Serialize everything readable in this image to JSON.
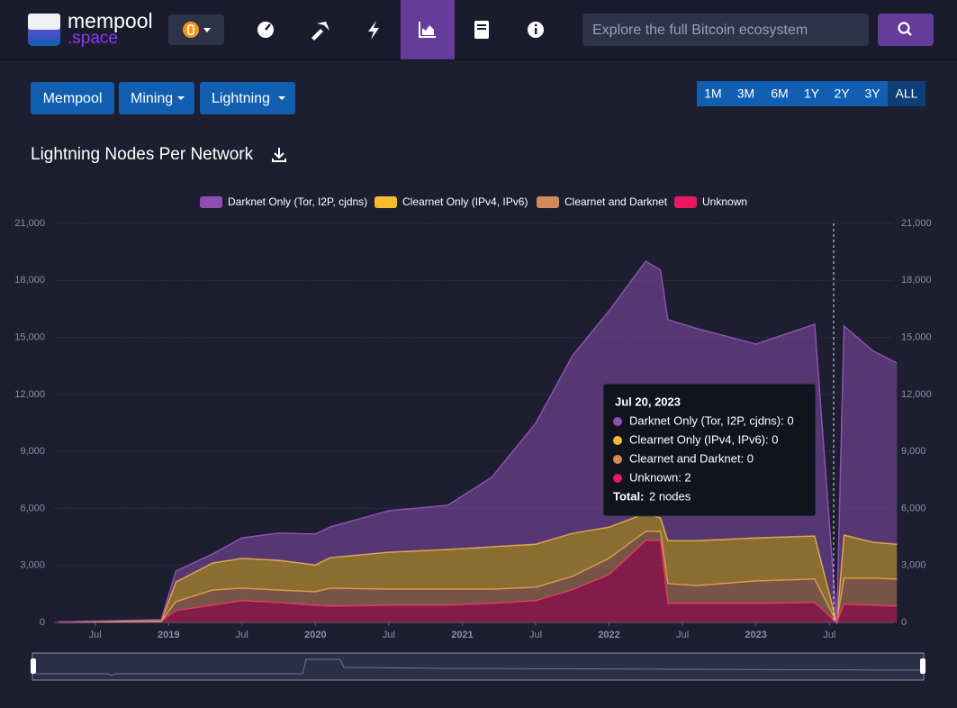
{
  "header": {
    "logo_top": "mempool",
    "logo_bottom": ".space",
    "search_placeholder": "Explore the full Bitcoin ecosystem"
  },
  "toolbar": {
    "buttons": [
      "Mempool",
      "Mining",
      "Lightning"
    ],
    "ranges": [
      "1M",
      "3M",
      "6M",
      "1Y",
      "2Y",
      "3Y",
      "ALL"
    ],
    "active_range": "ALL"
  },
  "chart_data": {
    "type": "stacked-area",
    "title": "Lightning Nodes Per Network",
    "x": [
      2018.25,
      2018.95,
      2019.05,
      2019.3,
      2019.5,
      2019.75,
      2020.0,
      2020.1,
      2020.5,
      2020.9,
      2021.2,
      2021.5,
      2021.75,
      2022.0,
      2022.25,
      2022.35,
      2022.4,
      2022.6,
      2023.0,
      2023.4,
      2023.55,
      2023.6,
      2023.8,
      2023.96
    ],
    "series": [
      {
        "name": "Darknet Only (Tor, I2P, cjdns)",
        "color": "#8e4fb3",
        "values": [
          10,
          70,
          570,
          470,
          1080,
          1430,
          1620,
          1610,
          2180,
          2320,
          3650,
          6360,
          9340,
          11380,
          13270,
          13030,
          11620,
          11150,
          10200,
          11140,
          0,
          11000,
          10050,
          9530
        ]
      },
      {
        "name": "Clearnet Only (IPv4, IPv6)",
        "color": "#f7bb31",
        "values": [
          5,
          20,
          1040,
          1430,
          1570,
          1570,
          1420,
          1610,
          1950,
          2090,
          2230,
          2270,
          2270,
          1650,
          950,
          710,
          2270,
          2370,
          2270,
          2270,
          0,
          2280,
          1900,
          1840
        ]
      },
      {
        "name": "Clearnet and Darknet",
        "color": "#d08a5c",
        "values": [
          5,
          10,
          470,
          800,
          660,
          660,
          710,
          950,
          850,
          850,
          750,
          710,
          710,
          860,
          480,
          480,
          1040,
          940,
          1180,
          1240,
          0,
          1370,
          1420,
          1430
        ]
      },
      {
        "name": "Unknown",
        "color": "#e8195f",
        "values": [
          5,
          50,
          620,
          900,
          1140,
          1040,
          900,
          850,
          900,
          900,
          1000,
          1140,
          1710,
          2510,
          4310,
          4310,
          1000,
          1000,
          1000,
          1040,
          2,
          950,
          900,
          850
        ]
      }
    ],
    "xlim": [
      2018.22,
      2023.94
    ],
    "xticks": [
      {
        "value": 2018.5,
        "label": "Jul"
      },
      2019,
      {
        "value": 2019.5,
        "label": "Jul"
      },
      2020,
      {
        "value": 2020.5,
        "label": "Jul"
      },
      2021,
      {
        "value": 2021.5,
        "label": "Jul"
      },
      2022,
      {
        "value": 2022.5,
        "label": "Jul"
      },
      2023,
      {
        "value": 2023.5,
        "label": "Jul"
      }
    ],
    "ylim": [
      0,
      21000
    ],
    "yticks": [
      0,
      {
        "value": 3000,
        "label": "3,000"
      },
      {
        "value": 6000,
        "label": "6,000"
      },
      {
        "value": 9000,
        "label": "9,000"
      },
      {
        "value": 12000,
        "label": "12,000"
      },
      {
        "value": 15000,
        "label": "15,000"
      },
      {
        "value": 18000,
        "label": "18,000"
      },
      {
        "value": 21000,
        "label": "21,000"
      }
    ],
    "y2lim": [
      0,
      21000
    ],
    "y2ticks": [
      0,
      {
        "value": 3000,
        "label": "3,000"
      },
      {
        "value": 6000,
        "label": "6,000"
      },
      {
        "value": 9000,
        "label": "9,000"
      },
      {
        "value": 12000,
        "label": "12,000"
      },
      {
        "value": 15000,
        "label": "15,000"
      },
      {
        "value": 18000,
        "label": "18,000"
      },
      {
        "value": 21000,
        "label": "21,000"
      }
    ],
    "grid": true,
    "legend": "top",
    "tooltip": {
      "title": "Jul 20, 2023",
      "lines": [
        "Darknet Only (Tor, I2P, cjdns): 0",
        "Clearnet Only (IPv4, IPv6): 0",
        "Clearnet and Darknet: 0",
        "Unknown: 2"
      ],
      "total_label": "Total:",
      "total_value": "2 nodes"
    }
  }
}
